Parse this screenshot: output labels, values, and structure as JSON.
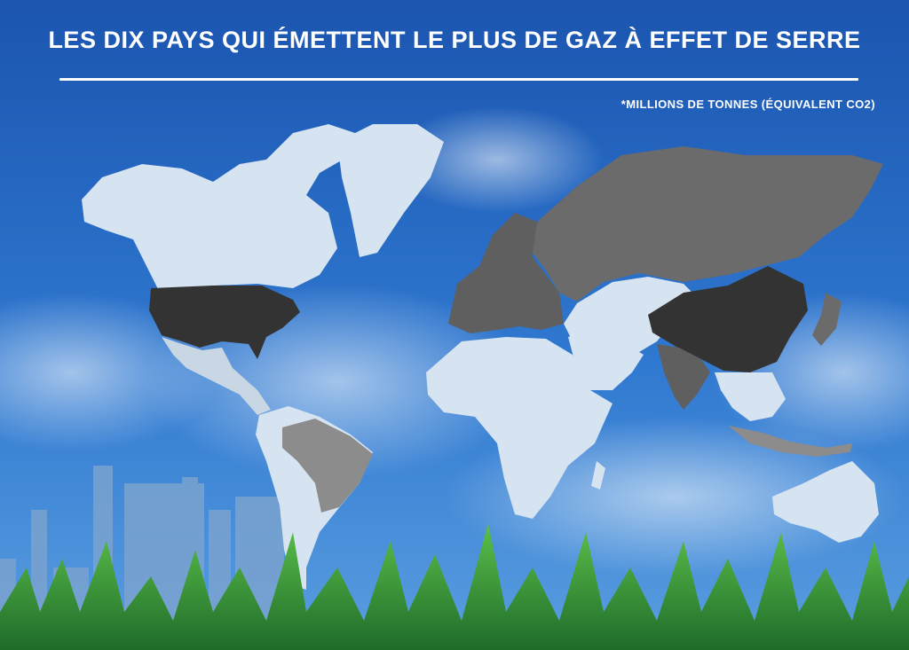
{
  "title": "LES DIX PAYS QUI ÉMETTENT LE PLUS DE GAZ À EFFET DE SERRE",
  "unit_note": "*MILLIONS DE TONNES (ÉQUIVALENT CO2)",
  "colors": {
    "sky_top": "#1a5bb5",
    "sky_bottom": "#3a86dc",
    "land_light": "#d6e4f2",
    "land_mid": "#8c8c8c",
    "land_dark": "#5f5f5f",
    "land_darkest": "#333333",
    "grass": "#3fa83a"
  },
  "legend_scale_note": "darker shading = higher emissions",
  "highlighted_regions": [
    {
      "region": "usa",
      "shade": "darkest"
    },
    {
      "region": "china",
      "shade": "darkest"
    },
    {
      "region": "russia",
      "shade": "dark"
    },
    {
      "region": "europe",
      "shade": "dark"
    },
    {
      "region": "india",
      "shade": "dark"
    },
    {
      "region": "japan",
      "shade": "dark"
    },
    {
      "region": "brazil",
      "shade": "mid"
    },
    {
      "region": "indonesia",
      "shade": "mid"
    }
  ]
}
